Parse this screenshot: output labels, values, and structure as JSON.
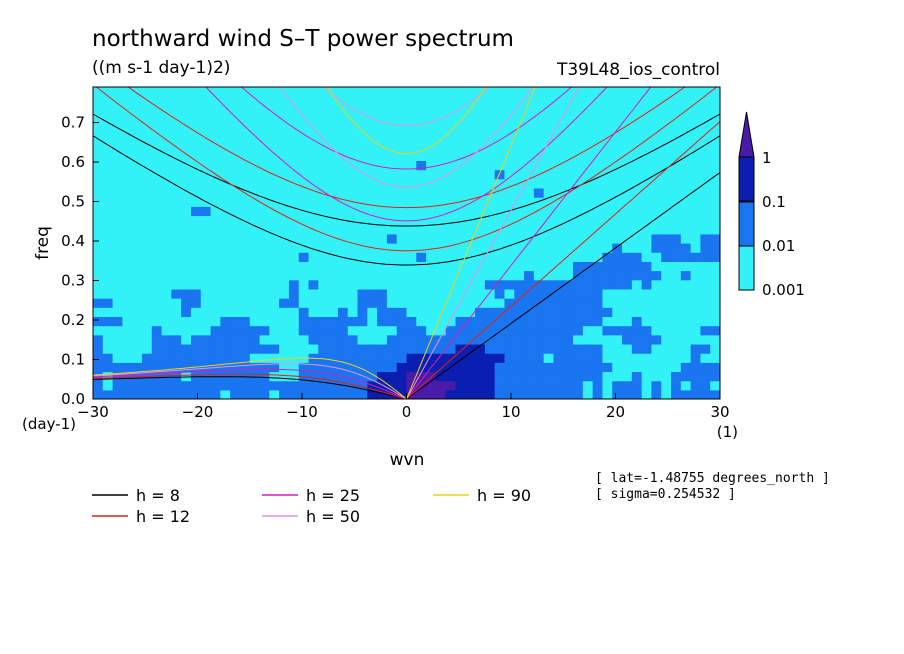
{
  "chart_data": {
    "type": "heatmap",
    "title": "northward wind S–T power spectrum",
    "subtitle": "((m s-1 day-1)2)",
    "run_label": "T39L48_ios_control",
    "xlabel": "wvn",
    "ylabel": "freq",
    "x_unit": "(1)",
    "y_unit": "(day-1)",
    "xlim": [
      -30,
      30
    ],
    "ylim": [
      0,
      0.79
    ],
    "xticks": [
      -30,
      -20,
      -10,
      0,
      10,
      20,
      30
    ],
    "xtick_labels": [
      "−30",
      "−20",
      "−10",
      "0",
      "10",
      "20",
      "30"
    ],
    "yticks": [
      0,
      0.1,
      0.2,
      0.3,
      0.4,
      0.5,
      0.6,
      0.7
    ],
    "ytick_labels": [
      "0.0",
      "0.1",
      "0.2",
      "0.3",
      "0.4",
      "0.5",
      "0.6",
      "0.7"
    ],
    "grid": false,
    "colorbar": {
      "levels": [
        0.001,
        0.01,
        0.1,
        1
      ],
      "labels": [
        "0.001",
        "0.01",
        "0.1",
        "1"
      ],
      "colors": [
        "#33f2f7",
        "#1a75f0",
        "#0a1fb0",
        "#4a1aa8"
      ],
      "background": "#ffffff"
    },
    "dispersion_curves": [
      {
        "label": "h = 8",
        "h": 8,
        "color": "#000000"
      },
      {
        "label": "h = 12",
        "h": 12,
        "color": "#e0201a"
      },
      {
        "label": "h = 25",
        "h": 25,
        "color": "#d81ac0"
      },
      {
        "label": "h = 50",
        "h": 50,
        "color": "#e690e0"
      },
      {
        "label": "h = 90",
        "h": 90,
        "color": "#e8d21a"
      }
    ],
    "annotations": [
      "[ lat=-1.48755 degrees_north ]",
      "[ sigma=0.254532 ]"
    ]
  }
}
